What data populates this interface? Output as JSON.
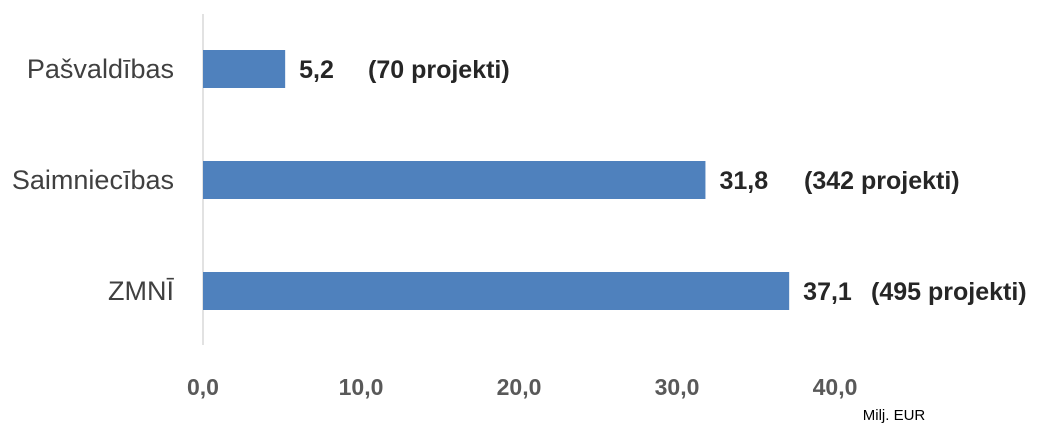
{
  "chart_data": {
    "type": "bar",
    "orientation": "horizontal",
    "categories": [
      "Pašvaldības",
      "Saimniecības",
      "ZMNĪ"
    ],
    "values": [
      5.2,
      31.8,
      37.1
    ],
    "value_labels": [
      "5,2",
      "31,8",
      "37,1"
    ],
    "annotations": [
      "(70 projekti)",
      "(342 projekti)",
      "(495 projekti)"
    ],
    "xticks": [
      "0,0",
      "10,0",
      "20,0",
      "30,0",
      "40,0"
    ],
    "xlim": [
      0,
      40
    ],
    "unit": "Milj. EUR",
    "grid": false,
    "legend": "none",
    "bar_color": "#4f81bd"
  }
}
